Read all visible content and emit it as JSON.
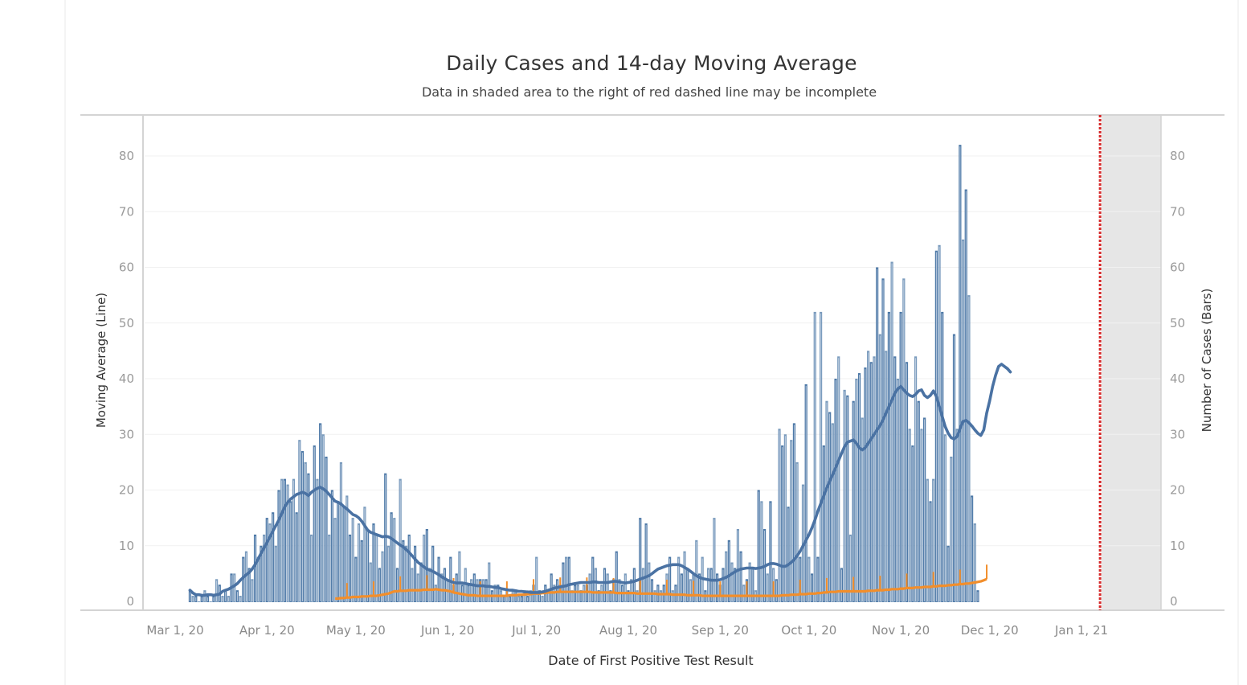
{
  "chart_data": {
    "type": "bar",
    "title": "Daily Cases and 14-day Moving Average",
    "subtitle": "Data in shaded area to the right of red dashed line may be incomplete",
    "xlabel": "Date of First Positive Test Result",
    "ylabel_left": "Moving Average (Line)",
    "ylabel_right": "Number of Cases (Bars)",
    "ylim": [
      0,
      87
    ],
    "y_ticks": [
      0,
      10,
      20,
      30,
      40,
      50,
      60,
      70,
      80
    ],
    "x_start": "2020-03-01",
    "x_end": "2021-01-22",
    "x_ticks": [
      {
        "label": "Mar 1, 20",
        "day": 0
      },
      {
        "label": "Apr 1, 20",
        "day": 31
      },
      {
        "label": "May 1, 20",
        "day": 61
      },
      {
        "label": "Jun 1, 20",
        "day": 92
      },
      {
        "label": "Jul 1, 20",
        "day": 122
      },
      {
        "label": "Aug 1, 20",
        "day": 153
      },
      {
        "label": "Sep 1, 20",
        "day": 184
      },
      {
        "label": "Oct 1, 20",
        "day": 214
      },
      {
        "label": "Nov 1, 20",
        "day": 245
      },
      {
        "label": "Dec 1, 20",
        "day": 275
      },
      {
        "label": "Jan 1, 21",
        "day": 306
      }
    ],
    "incomplete_after_day": 312,
    "grid": true,
    "colors": {
      "bars": "#4e79a7",
      "moving_average": "#4e79a7",
      "secondary_line": "#f28e2b",
      "cutoff_line": "#d62728",
      "shaded": "#e6e6e6"
    },
    "series": [
      {
        "name": "Number of Cases (Bars)",
        "kind": "bar",
        "start_day": 5,
        "values": [
          2,
          1,
          1,
          0,
          1,
          2,
          1,
          0,
          1,
          4,
          3,
          1,
          2,
          1,
          5,
          5,
          2,
          1,
          8,
          9,
          6,
          4,
          12,
          8,
          10,
          12,
          15,
          14,
          16,
          10,
          20,
          22,
          22,
          21,
          18,
          22,
          16,
          29,
          27,
          25,
          23,
          12,
          28,
          22,
          32,
          30,
          26,
          12,
          20,
          15,
          18,
          25,
          17,
          19,
          12,
          15,
          8,
          14,
          11,
          17,
          13,
          7,
          14,
          12,
          6,
          9,
          23,
          10,
          16,
          15,
          6,
          22,
          11,
          10,
          12,
          6,
          10,
          5,
          7,
          12,
          13,
          6,
          10,
          3,
          8,
          5,
          6,
          4,
          8,
          3,
          5,
          9,
          3,
          6,
          3,
          4,
          5,
          4,
          4,
          4,
          4,
          7,
          2,
          3,
          3,
          2,
          1,
          2,
          1,
          2,
          2,
          1,
          1,
          2,
          1,
          2,
          3,
          8,
          2,
          1,
          3,
          2,
          5,
          3,
          4,
          3,
          7,
          8,
          8,
          2,
          3,
          3,
          2,
          3,
          3,
          5,
          8,
          6,
          2,
          3,
          6,
          5,
          2,
          4,
          9,
          4,
          3,
          5,
          2,
          4,
          6,
          2,
          15,
          6,
          14,
          7,
          4,
          2,
          3,
          2,
          3,
          5,
          8,
          2,
          3,
          8,
          5,
          9,
          6,
          4,
          5,
          11,
          5,
          8,
          2,
          6,
          6,
          15,
          5,
          3,
          6,
          9,
          11,
          7,
          6,
          13,
          9,
          3,
          4,
          7,
          6,
          2,
          20,
          18,
          13,
          5,
          18,
          6,
          4,
          31,
          28,
          30,
          17,
          29,
          32,
          25,
          8,
          21,
          39,
          8,
          5,
          52,
          8,
          52,
          28,
          36,
          34,
          32,
          40,
          44,
          6,
          38,
          37,
          12,
          36,
          40,
          41,
          33,
          42,
          45,
          43,
          44,
          60,
          48,
          58,
          45,
          52,
          61,
          44,
          40,
          52,
          58,
          43,
          31,
          28,
          44,
          36,
          31,
          33,
          22,
          18,
          22,
          63,
          64,
          52,
          30,
          10,
          26,
          48,
          31,
          82,
          65,
          74,
          55,
          19,
          14,
          2
        ],
        "orange_values": []
      },
      {
        "name": "14-day Moving Average (Line)",
        "kind": "line",
        "start_day": 5,
        "values": [
          2,
          1.5,
          1.2,
          1.2,
          1.1,
          1.1,
          1.2,
          1.2,
          1.1,
          1.2,
          1.3,
          1.8,
          2,
          2.2,
          2.5,
          2.8,
          3.2,
          3.8,
          4.3,
          4.8,
          5.2,
          5.8,
          6.6,
          7.6,
          8.6,
          9.6,
          10.6,
          11.6,
          12.6,
          13.6,
          14.6,
          15.8,
          17,
          17.8,
          18.4,
          18.8,
          19.2,
          19.4,
          19.6,
          19.4,
          19,
          19.6,
          20,
          20.3,
          20.5,
          20.2,
          19.8,
          19.2,
          18.6,
          18,
          17.8,
          17.5,
          17,
          16.6,
          16.1,
          15.6,
          15.4,
          15,
          14.4,
          13.6,
          12.8,
          12.4,
          12.2,
          12,
          11.8,
          11.6,
          11.7,
          11.6,
          11.3,
          10.9,
          10.5,
          10.1,
          9.8,
          9.3,
          8.8,
          8.2,
          7.6,
          7,
          6.6,
          6.2,
          5.8,
          5.6,
          5.4,
          5.1,
          4.8,
          4.4,
          4.1,
          3.8,
          3.6,
          3.4,
          3.3,
          3.3,
          3.3,
          3.2,
          3.1,
          3,
          2.9,
          2.8,
          2.8,
          2.8,
          2.7,
          2.7,
          2.6,
          2.5,
          2.5,
          2.3,
          2.2,
          2.1,
          2,
          2,
          1.9,
          1.8,
          1.8,
          1.7,
          1.7,
          1.6,
          1.6,
          1.6,
          1.6,
          1.7,
          1.8,
          2,
          2.2,
          2.4,
          2.5,
          2.6,
          2.7,
          2.8,
          3,
          3.1,
          3.2,
          3.3,
          3.4,
          3.4,
          3.4,
          3.4,
          3.5,
          3.5,
          3.4,
          3.4,
          3.4,
          3.4,
          3.5,
          3.6,
          3.6,
          3.5,
          3.4,
          3.3,
          3.4,
          3.5,
          3.6,
          3.8,
          4,
          4.2,
          4.4,
          4.6,
          5,
          5.4,
          5.8,
          6,
          6.2,
          6.4,
          6.5,
          6.6,
          6.6,
          6.6,
          6.4,
          6.1,
          5.8,
          5.4,
          5,
          4.6,
          4.3,
          4.1,
          4,
          3.9,
          3.8,
          3.8,
          3.8,
          3.9,
          4.1,
          4.3,
          4.6,
          5,
          5.3,
          5.6,
          5.8,
          5.9,
          6,
          6,
          6,
          5.9,
          6,
          6.1,
          6.3,
          6.6,
          6.8,
          6.8,
          6.7,
          6.5,
          6.3,
          6.3,
          6.6,
          7,
          7.5,
          8.2,
          9,
          10,
          11,
          12,
          13.2,
          14.6,
          16.2,
          17.6,
          19,
          20.4,
          21.6,
          22.8,
          24,
          25.3,
          26.6,
          27.8,
          28.6,
          28.8,
          29,
          28.4,
          27.6,
          27.2,
          27.6,
          28.4,
          29.2,
          30,
          30.8,
          31.6,
          32.6,
          33.8,
          35,
          36.2,
          37.4,
          38.2,
          38.6,
          38,
          37.4,
          37,
          36.8,
          37.2,
          37.8,
          38,
          37,
          36.6,
          37,
          37.8,
          36.8,
          35,
          33.2,
          31.4,
          30.2,
          29.4,
          29.2,
          29.6,
          31,
          32.3,
          32.5,
          32.1,
          31.5,
          30.8,
          30.2,
          29.8,
          30.8,
          33.8,
          36,
          38.6,
          40.6,
          42.2,
          42.6,
          42.2,
          41.8,
          41.2
        ],
        "orange_values": []
      },
      {
        "name": "Secondary Line (orange)",
        "kind": "line",
        "start_day": 54,
        "values": [
          0.5,
          0.5,
          0.6,
          0.6,
          0.7,
          0.7,
          0.8,
          0.8,
          0.8,
          0.9,
          0.9,
          0.9,
          1,
          1,
          1,
          1.1,
          1.2,
          1.3,
          1.4,
          1.6,
          1.8,
          1.8,
          1.9,
          1.9,
          1.9,
          2,
          2,
          2,
          2,
          2,
          2.1,
          2.1,
          2.1,
          2.1,
          2.2,
          2.1,
          2,
          2,
          1.9,
          1.8,
          1.6,
          1.5,
          1.4,
          1.3,
          1.2,
          1.1,
          1.1,
          1.1,
          1,
          1,
          1,
          1,
          1,
          1,
          1,
          1,
          1,
          1,
          1,
          1.1,
          1.1,
          1.1,
          1.2,
          1.2,
          1.2,
          1.3,
          1.3,
          1.4,
          1.4,
          1.4,
          1.5,
          1.5,
          1.6,
          1.6,
          1.6,
          1.7,
          1.7,
          1.7,
          1.7,
          1.7,
          1.7,
          1.7,
          1.7,
          1.7,
          1.7,
          1.7,
          1.7,
          1.6,
          1.6,
          1.6,
          1.6,
          1.6,
          1.6,
          1.6,
          1.6,
          1.5,
          1.5,
          1.5,
          1.5,
          1.5,
          1.5,
          1.5,
          1.4,
          1.4,
          1.4,
          1.4,
          1.4,
          1.4,
          1.4,
          1.3,
          1.3,
          1.3,
          1.3,
          1.3,
          1.2,
          1.2,
          1.2,
          1.2,
          1.2,
          1.1,
          1.1,
          1.1,
          1.1,
          1.1,
          1,
          1,
          1,
          1,
          1,
          1,
          1,
          1,
          1,
          1,
          1,
          1,
          1,
          1,
          1,
          1,
          1,
          1,
          1,
          1,
          1,
          1,
          1,
          1,
          1,
          1,
          1,
          1.1,
          1.1,
          1.1,
          1.2,
          1.2,
          1.2,
          1.3,
          1.3,
          1.3,
          1.4,
          1.4,
          1.4,
          1.5,
          1.5,
          1.6,
          1.6,
          1.7,
          1.7,
          1.7,
          1.8,
          1.8,
          1.8,
          1.8,
          1.8,
          1.8,
          1.8,
          1.8,
          1.8,
          1.8,
          1.9,
          1.9,
          1.9,
          2,
          2,
          2,
          2.1,
          2.1,
          2.2,
          2.2,
          2.2,
          2.3,
          2.3,
          2.4,
          2.4,
          2.4,
          2.5,
          2.5,
          2.5,
          2.6,
          2.6,
          2.6,
          2.7,
          2.7,
          2.8,
          2.8,
          2.8,
          2.9,
          2.9,
          3,
          3,
          3.1,
          3.1,
          3.2,
          3.2,
          3.3,
          3.4,
          3.5,
          3.6,
          3.8,
          4
        ]
      }
    ]
  }
}
